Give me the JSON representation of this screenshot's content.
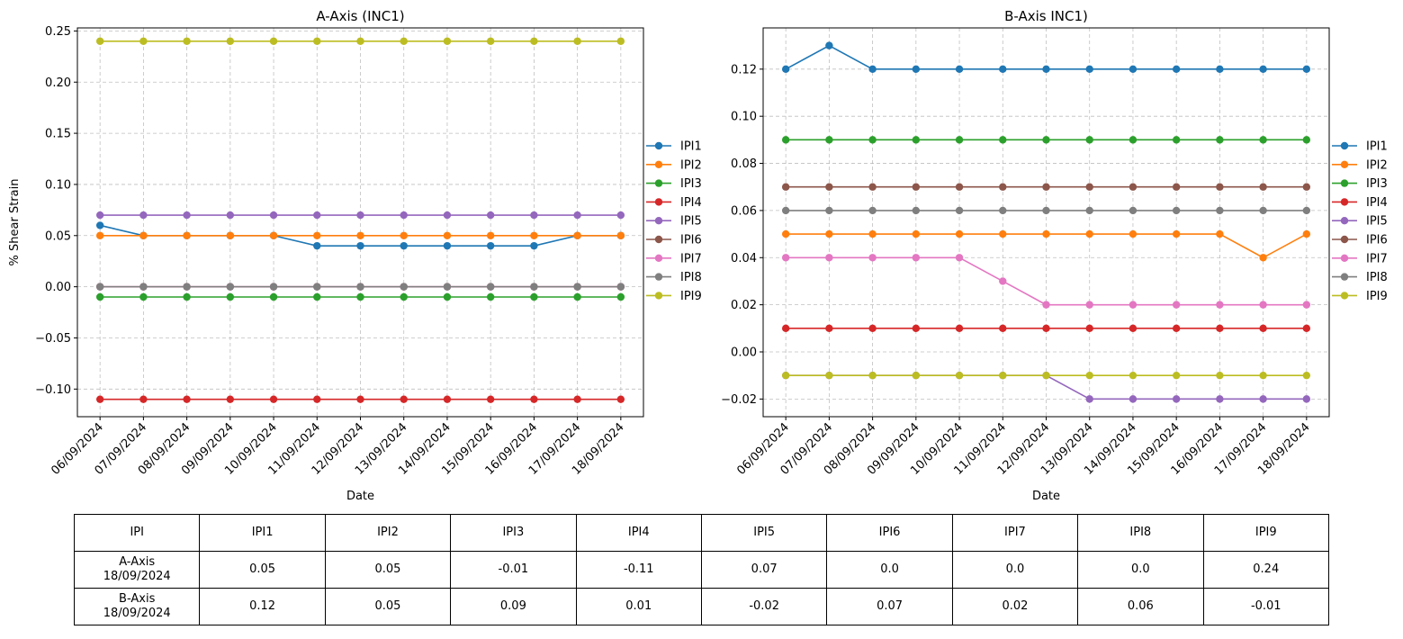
{
  "chart_data": [
    {
      "type": "line",
      "title": "A-Axis (INC1)",
      "xlabel": "Date",
      "ylabel": "% Shear Strain",
      "x": [
        "06/09/2024",
        "07/09/2024",
        "08/09/2024",
        "09/09/2024",
        "10/09/2024",
        "11/09/2024",
        "12/09/2024",
        "13/09/2024",
        "14/09/2024",
        "15/09/2024",
        "16/09/2024",
        "17/09/2024",
        "18/09/2024"
      ],
      "ylim": [
        -0.127,
        0.253
      ],
      "yticks": [
        -0.1,
        -0.05,
        0.0,
        0.05,
        0.1,
        0.15,
        0.2,
        0.25
      ],
      "ytick_labels": [
        "−0.10",
        "−0.05",
        "0.00",
        "0.05",
        "0.10",
        "0.15",
        "0.20",
        "0.25"
      ],
      "grid": true,
      "legend_position": "right",
      "series": [
        {
          "name": "IPI1",
          "color": "#1f77b4",
          "values": [
            0.06,
            0.05,
            0.05,
            0.05,
            0.05,
            0.04,
            0.04,
            0.04,
            0.04,
            0.04,
            0.04,
            0.05,
            0.05
          ]
        },
        {
          "name": "IPI2",
          "color": "#ff7f0e",
          "values": [
            0.05,
            0.05,
            0.05,
            0.05,
            0.05,
            0.05,
            0.05,
            0.05,
            0.05,
            0.05,
            0.05,
            0.05,
            0.05
          ]
        },
        {
          "name": "IPI3",
          "color": "#2ca02c",
          "values": [
            -0.01,
            -0.01,
            -0.01,
            -0.01,
            -0.01,
            -0.01,
            -0.01,
            -0.01,
            -0.01,
            -0.01,
            -0.01,
            -0.01,
            -0.01
          ]
        },
        {
          "name": "IPI4",
          "color": "#d62728",
          "values": [
            -0.11,
            -0.11,
            -0.11,
            -0.11,
            -0.11,
            -0.11,
            -0.11,
            -0.11,
            -0.11,
            -0.11,
            -0.11,
            -0.11,
            -0.11
          ]
        },
        {
          "name": "IPI5",
          "color": "#9467bd",
          "values": [
            0.07,
            0.07,
            0.07,
            0.07,
            0.07,
            0.07,
            0.07,
            0.07,
            0.07,
            0.07,
            0.07,
            0.07,
            0.07
          ]
        },
        {
          "name": "IPI6",
          "color": "#8c564b",
          "values": [
            0.0,
            0.0,
            0.0,
            0.0,
            0.0,
            0.0,
            0.0,
            0.0,
            0.0,
            0.0,
            0.0,
            0.0,
            0.0
          ]
        },
        {
          "name": "IPI7",
          "color": "#e377c2",
          "values": [
            0.0,
            0.0,
            0.0,
            0.0,
            0.0,
            0.0,
            0.0,
            0.0,
            0.0,
            0.0,
            0.0,
            0.0,
            0.0
          ]
        },
        {
          "name": "IPI8",
          "color": "#7f7f7f",
          "values": [
            0.0,
            0.0,
            0.0,
            0.0,
            0.0,
            0.0,
            0.0,
            0.0,
            0.0,
            0.0,
            0.0,
            0.0,
            0.0
          ]
        },
        {
          "name": "IPI9",
          "color": "#bcbd22",
          "values": [
            0.24,
            0.24,
            0.24,
            0.24,
            0.24,
            0.24,
            0.24,
            0.24,
            0.24,
            0.24,
            0.24,
            0.24,
            0.24
          ]
        }
      ]
    },
    {
      "type": "line",
      "title": "B-Axis INC1)",
      "xlabel": "Date",
      "ylabel": "",
      "x": [
        "06/09/2024",
        "07/09/2024",
        "08/09/2024",
        "09/09/2024",
        "10/09/2024",
        "11/09/2024",
        "12/09/2024",
        "13/09/2024",
        "14/09/2024",
        "15/09/2024",
        "16/09/2024",
        "17/09/2024",
        "18/09/2024"
      ],
      "ylim": [
        -0.0275,
        0.1375
      ],
      "yticks": [
        -0.02,
        0.0,
        0.02,
        0.04,
        0.06,
        0.08,
        0.1,
        0.12
      ],
      "ytick_labels": [
        "−0.02",
        "0.00",
        "0.02",
        "0.04",
        "0.06",
        "0.08",
        "0.10",
        "0.12"
      ],
      "grid": true,
      "legend_position": "right",
      "series": [
        {
          "name": "IPI1",
          "color": "#1f77b4",
          "values": [
            0.12,
            0.13,
            0.12,
            0.12,
            0.12,
            0.12,
            0.12,
            0.12,
            0.12,
            0.12,
            0.12,
            0.12,
            0.12
          ]
        },
        {
          "name": "IPI2",
          "color": "#ff7f0e",
          "values": [
            0.05,
            0.05,
            0.05,
            0.05,
            0.05,
            0.05,
            0.05,
            0.05,
            0.05,
            0.05,
            0.05,
            0.04,
            0.05
          ]
        },
        {
          "name": "IPI3",
          "color": "#2ca02c",
          "values": [
            0.09,
            0.09,
            0.09,
            0.09,
            0.09,
            0.09,
            0.09,
            0.09,
            0.09,
            0.09,
            0.09,
            0.09,
            0.09
          ]
        },
        {
          "name": "IPI4",
          "color": "#d62728",
          "values": [
            0.01,
            0.01,
            0.01,
            0.01,
            0.01,
            0.01,
            0.01,
            0.01,
            0.01,
            0.01,
            0.01,
            0.01,
            0.01
          ]
        },
        {
          "name": "IPI5",
          "color": "#9467bd",
          "values": [
            -0.01,
            -0.01,
            -0.01,
            -0.01,
            -0.01,
            -0.01,
            -0.01,
            -0.02,
            -0.02,
            -0.02,
            -0.02,
            -0.02,
            -0.02
          ]
        },
        {
          "name": "IPI6",
          "color": "#8c564b",
          "values": [
            0.07,
            0.07,
            0.07,
            0.07,
            0.07,
            0.07,
            0.07,
            0.07,
            0.07,
            0.07,
            0.07,
            0.07,
            0.07
          ]
        },
        {
          "name": "IPI7",
          "color": "#e377c2",
          "values": [
            0.04,
            0.04,
            0.04,
            0.04,
            0.04,
            0.03,
            0.02,
            0.02,
            0.02,
            0.02,
            0.02,
            0.02,
            0.02
          ]
        },
        {
          "name": "IPI8",
          "color": "#7f7f7f",
          "values": [
            0.06,
            0.06,
            0.06,
            0.06,
            0.06,
            0.06,
            0.06,
            0.06,
            0.06,
            0.06,
            0.06,
            0.06,
            0.06
          ]
        },
        {
          "name": "IPI9",
          "color": "#bcbd22",
          "values": [
            -0.01,
            -0.01,
            -0.01,
            -0.01,
            -0.01,
            -0.01,
            -0.01,
            -0.01,
            -0.01,
            -0.01,
            -0.01,
            -0.01,
            -0.01
          ]
        }
      ]
    }
  ],
  "table": {
    "header": [
      "IPI",
      "IPI1",
      "IPI2",
      "IPI3",
      "IPI4",
      "IPI5",
      "IPI6",
      "IPI7",
      "IPI8",
      "IPI9"
    ],
    "rows": [
      [
        "A-Axis\n18/09/2024",
        "0.05",
        "0.05",
        "-0.01",
        "-0.11",
        "0.07",
        "0.0",
        "0.0",
        "0.0",
        "0.24"
      ],
      [
        "B-Axis\n18/09/2024",
        "0.12",
        "0.05",
        "0.09",
        "0.01",
        "-0.02",
        "0.07",
        "0.02",
        "0.06",
        "-0.01"
      ]
    ]
  }
}
